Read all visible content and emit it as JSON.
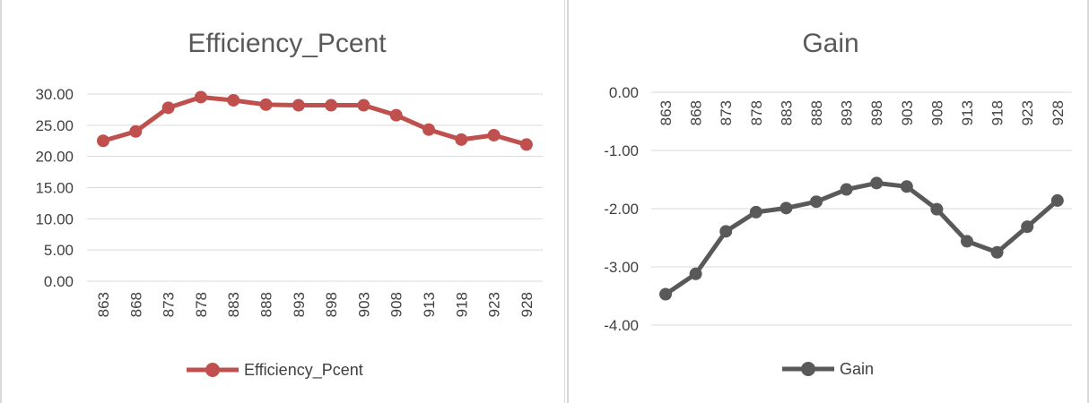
{
  "chart_data": [
    {
      "type": "line",
      "title": "Efficiency_Pcent",
      "categories": [
        "863",
        "868",
        "873",
        "878",
        "883",
        "888",
        "893",
        "898",
        "903",
        "908",
        "913",
        "918",
        "923",
        "928"
      ],
      "series": [
        {
          "name": "Efficiency_Pcent",
          "color": "#c0504d",
          "values": [
            22.5,
            24.0,
            27.8,
            29.5,
            29.0,
            28.3,
            28.2,
            28.2,
            28.2,
            26.6,
            24.3,
            22.7,
            23.4,
            21.9
          ]
        }
      ],
      "yticks": [
        "0.00",
        "5.00",
        "10.00",
        "15.00",
        "20.00",
        "25.00",
        "30.00"
      ],
      "ylim": [
        0,
        30
      ],
      "grid": true,
      "legend": "bottom"
    },
    {
      "type": "line",
      "title": "Gain",
      "categories": [
        "863",
        "868",
        "873",
        "878",
        "883",
        "888",
        "893",
        "898",
        "903",
        "908",
        "913",
        "918",
        "923",
        "928"
      ],
      "series": [
        {
          "name": "Gain",
          "color": "#595959",
          "values": [
            -3.47,
            -3.12,
            -2.39,
            -2.06,
            -1.99,
            -1.88,
            -1.67,
            -1.56,
            -1.62,
            -2.01,
            -2.56,
            -2.75,
            -2.31,
            -1.86
          ]
        }
      ],
      "yticks": [
        "0.00",
        "-1.00",
        "-2.00",
        "-3.00",
        "-4.00"
      ],
      "ylim": [
        -4,
        0
      ],
      "grid": true,
      "legend": "bottom"
    }
  ]
}
